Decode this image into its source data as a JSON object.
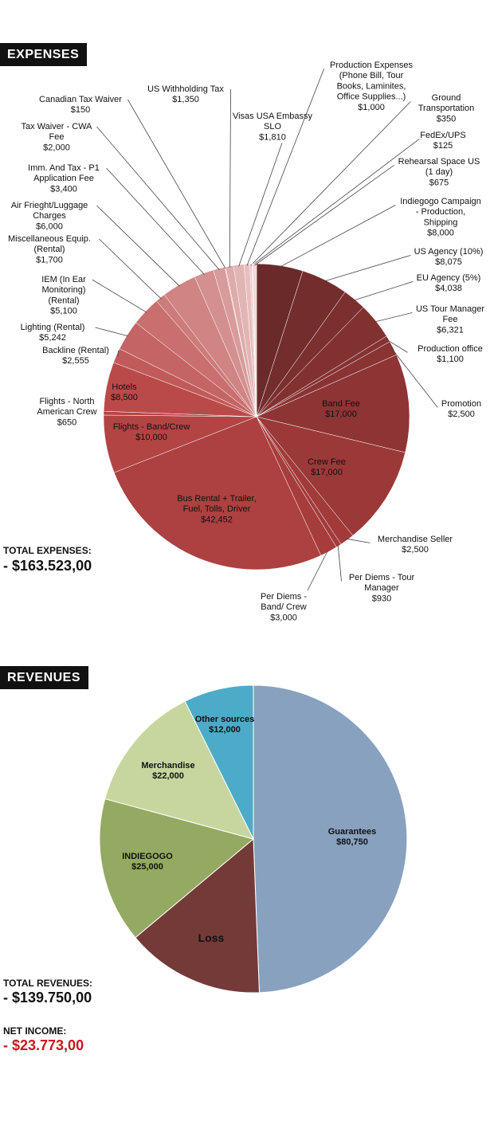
{
  "expenses": {
    "badge": "EXPENSES",
    "total_label": "TOTAL EXPENSES:",
    "total_value": "- $163.523,00"
  },
  "revenues": {
    "badge": "REVENUES",
    "total_label": "TOTAL REVENUES:",
    "total_value": "- $139.750,00"
  },
  "net_income": {
    "label": "NET INCOME:",
    "value": "- $23.773,00",
    "value_color": "#c8171d"
  },
  "chart_data": [
    {
      "type": "pie",
      "title": "EXPENSES",
      "slices": [
        {
          "label": "Indiegogo Campaign - Production, Shipping",
          "display": "$8,000",
          "value": 8000,
          "color": "#6b2a2a"
        },
        {
          "label": "US Agency (10%)",
          "display": "$8,075",
          "value": 8075,
          "color": "#732d2d"
        },
        {
          "label": "EU Agency (5%)",
          "display": "$4,038",
          "value": 4038,
          "color": "#7b2f2f"
        },
        {
          "label": "US Tour Manager Fee",
          "display": "$6,321",
          "value": 6321,
          "color": "#823131"
        },
        {
          "label": "Production office",
          "display": "$1,100",
          "value": 1100,
          "color": "#863232"
        },
        {
          "label": "Promotion",
          "display": "$2,500",
          "value": 2500,
          "color": "#893333"
        },
        {
          "label": "Band Fee",
          "display": "$17,000",
          "value": 17000,
          "color": "#8e3434"
        },
        {
          "label": "Crew Fee",
          "display": "$17,000",
          "value": 17000,
          "color": "#9b3838"
        },
        {
          "label": "Merchandise Seller",
          "display": "$2,500",
          "value": 2500,
          "color": "#a23a3a"
        },
        {
          "label": "Per Diems - Tour Manager",
          "display": "$930",
          "value": 930,
          "color": "#a43b3b"
        },
        {
          "label": "Per Diems - Band/ Crew",
          "display": "$3,000",
          "value": 3000,
          "color": "#a73c3c"
        },
        {
          "label": "Bus Rental + Trailer, Fuel, Tolls, Driver",
          "display": "$42,452",
          "value": 42452,
          "color": "#ad4040"
        },
        {
          "label": "Flights - Band/Crew",
          "display": "$10,000",
          "value": 10000,
          "color": "#b34444"
        },
        {
          "label": "Flights - North American Crew",
          "display": "$650",
          "value": 650,
          "color": "#b64646"
        },
        {
          "label": "Hotels",
          "display": "$8,500",
          "value": 8500,
          "color": "#ba4a4a"
        },
        {
          "label": "Backline (Rental)",
          "display": "$2,555",
          "value": 2555,
          "color": "#c15a5a"
        },
        {
          "label": "Lighting (Rental)",
          "display": "$5,242",
          "value": 5242,
          "color": "#c56464"
        },
        {
          "label": "IEM (In Ear Monitoring) (Rental)",
          "display": "$5,100",
          "value": 5100,
          "color": "#c96f6f"
        },
        {
          "label": "Miscellaneous Equip. (Rental)",
          "display": "$1,700",
          "value": 1700,
          "color": "#cd7b7b"
        },
        {
          "label": "Air Frieght/Luggage Charges",
          "display": "$6,000",
          "value": 6000,
          "color": "#d08484"
        },
        {
          "label": "Imm. And Tax - P1 Application Fee",
          "display": "$3,400",
          "value": 3400,
          "color": "#d49090"
        },
        {
          "label": "Tax Waiver - CWA Fee",
          "display": "$2,000",
          "value": 2000,
          "color": "#d89b9b"
        },
        {
          "label": "Canadian Tax Waiver",
          "display": "$150",
          "value": 150,
          "color": "#dba3a3"
        },
        {
          "label": "US Withholding Tax",
          "display": "$1,350",
          "value": 1350,
          "color": "#deabab"
        },
        {
          "label": "Visas USA Embassy SLO",
          "display": "$1,810",
          "value": 1810,
          "color": "#e2b5b5"
        },
        {
          "label": "Production Expenses (Phone Bill, Tour Books, Laminites, Office Supplies...)",
          "display": "$1,000",
          "value": 1000,
          "color": "#e6bfbf"
        },
        {
          "label": "Ground Transportation",
          "display": "$350",
          "value": 350,
          "color": "#e9c7c7"
        },
        {
          "label": "FedEx/UPS",
          "display": "$125",
          "value": 125,
          "color": "#ecd0d0"
        },
        {
          "label": "Rehearsal Space US (1 day)",
          "display": "$675",
          "value": 675,
          "color": "#efd8d8"
        }
      ]
    },
    {
      "type": "pie",
      "title": "REVENUES",
      "slices": [
        {
          "label": "Guarantees",
          "display": "$80,750",
          "value": 80750,
          "color": "#88a1bf"
        },
        {
          "label": "Loss",
          "display": "",
          "value": 23773,
          "color": "#733a38"
        },
        {
          "label": "INDIEGOGO",
          "display": "$25,000",
          "value": 25000,
          "color": "#94aa62"
        },
        {
          "label": "Merchandise",
          "display": "$22,000",
          "value": 22000,
          "color": "#c6d69e"
        },
        {
          "label": "Other sources",
          "display": "$12,000",
          "value": 12000,
          "color": "#4cabc8"
        }
      ]
    }
  ]
}
